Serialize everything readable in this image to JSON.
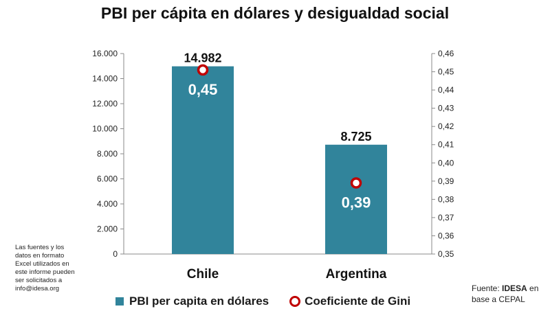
{
  "chart_data": {
    "type": "bar",
    "title": "PBI per cápita en dólares y desigualdad social",
    "categories": [
      "Chile",
      "Argentina"
    ],
    "series": [
      {
        "name": "PBI per capita en dólares",
        "type": "bar",
        "axis": "left",
        "values": [
          14982,
          8725
        ],
        "labels": [
          "14.982",
          "8.725"
        ],
        "color": "#31849b"
      },
      {
        "name": "Coeficiente de Gini",
        "type": "scatter",
        "axis": "right",
        "values": [
          0.451,
          0.389
        ],
        "labels": [
          "0,45",
          "0,39"
        ],
        "color": "#c00000"
      }
    ],
    "y_left": {
      "range": [
        0,
        16000
      ],
      "ticks": [
        0,
        2000,
        4000,
        6000,
        8000,
        10000,
        12000,
        14000,
        16000
      ],
      "tick_labels": [
        "0",
        "2.000",
        "4.000",
        "6.000",
        "8.000",
        "10.000",
        "12.000",
        "14.000",
        "16.000"
      ]
    },
    "y_right": {
      "range": [
        0.35,
        0.46
      ],
      "ticks": [
        0.35,
        0.36,
        0.37,
        0.38,
        0.39,
        0.4,
        0.41,
        0.42,
        0.43,
        0.44,
        0.45,
        0.46
      ],
      "tick_labels": [
        "0,35",
        "0,36",
        "0,37",
        "0,38",
        "0,39",
        "0,40",
        "0,41",
        "0,42",
        "0,43",
        "0,44",
        "0,45",
        "0,46"
      ]
    },
    "grid": false,
    "legend_position": "bottom"
  },
  "note_lines": [
    "Las fuentes y los",
    "datos en formato",
    "Excel utilizados en",
    "este informe pueden",
    "ser solicitados a",
    "info@idesa.org"
  ],
  "source": {
    "prefix": "Fuente: ",
    "org": "IDESA",
    "suffix": " en base a CEPAL"
  }
}
